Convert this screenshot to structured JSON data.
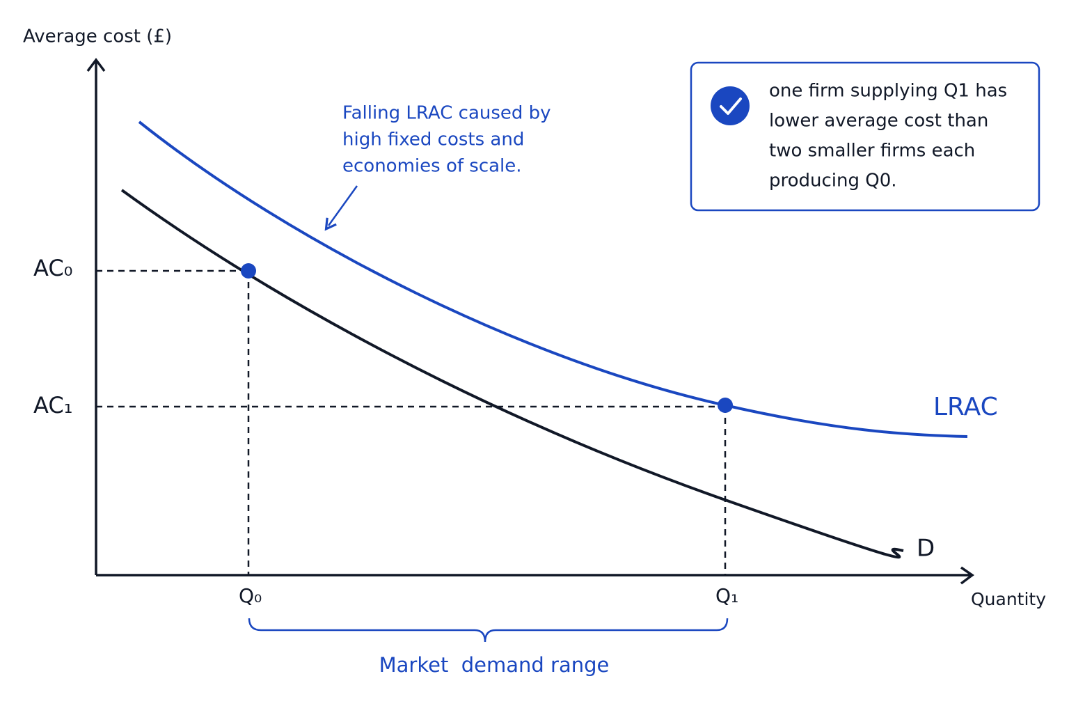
{
  "axes": {
    "y_label": "Average cost (£)",
    "x_label": "Quantity"
  },
  "ticks": {
    "y": [
      "AC₀",
      "AC₁"
    ],
    "x": [
      "Q₀",
      "Q₁"
    ]
  },
  "curves": {
    "lrac": "LRAC",
    "demand": "D"
  },
  "annotation": {
    "lines": [
      "Falling LRAC caused by",
      "high fixed costs and",
      "economies of scale."
    ]
  },
  "callout": {
    "lines": [
      "one firm supplying Q1 has",
      "lower average cost than",
      "two smaller firms each",
      "producing Q0."
    ]
  },
  "range_label": "Market  demand range"
}
